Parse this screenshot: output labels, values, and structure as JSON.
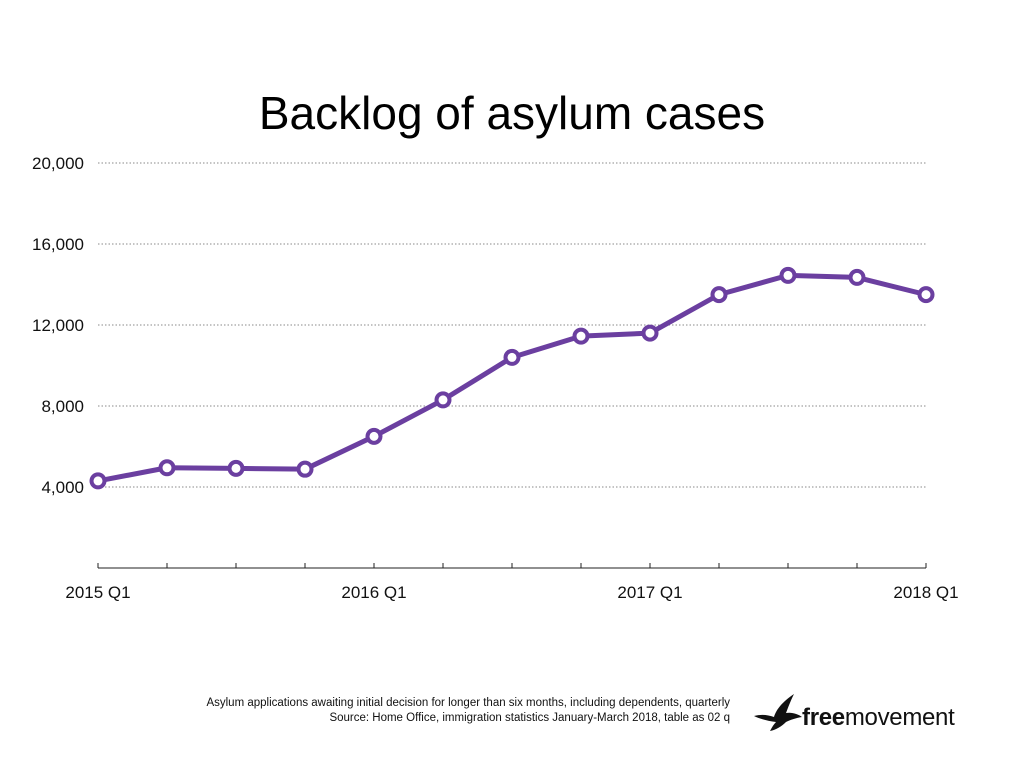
{
  "chart_data": {
    "type": "line",
    "title": "Backlog of asylum cases",
    "x": [
      "2015 Q1",
      "2015 Q2",
      "2015 Q3",
      "2015 Q4",
      "2016 Q1",
      "2016 Q2",
      "2016 Q3",
      "2016 Q4",
      "2017 Q1",
      "2017 Q2",
      "2017 Q3",
      "2017 Q4",
      "2018 Q1"
    ],
    "x_tick_labels": [
      "2015 Q1",
      "2016 Q1",
      "2017 Q1",
      "2018 Q1"
    ],
    "y_ticks": [
      4000,
      8000,
      12000,
      16000,
      20000
    ],
    "y_tick_labels": [
      "4,000",
      "8,000",
      "12,000",
      "16,000",
      "20,000"
    ],
    "ylim": [
      0,
      20000
    ],
    "grid": true,
    "series": [
      {
        "values": [
          4300,
          4950,
          4920,
          4880,
          6500,
          8300,
          10400,
          11450,
          11600,
          13500,
          14450,
          14350,
          13500
        ],
        "color": "#6b3fa0"
      }
    ]
  },
  "footnote": {
    "line1": "Asylum applications awaiting initial decision for longer than six months, including dependents, quarterly",
    "line2": "Source: Home Office, immigration statistics January-March 2018, table as 02 q"
  },
  "logo": {
    "text_bold": "free",
    "text_regular": "movement",
    "icon": "bird-icon"
  }
}
